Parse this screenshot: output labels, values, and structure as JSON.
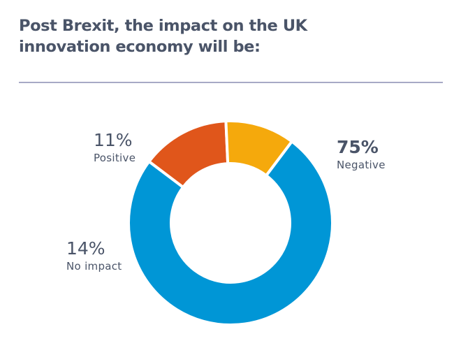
{
  "chart_data": {
    "type": "pie",
    "style": "donut",
    "title": "Post Brexit, the impact on the UK innovation economy will be:",
    "slices": [
      {
        "label": "Negative",
        "value": 75,
        "value_label": "75%",
        "color": "#0096d6"
      },
      {
        "label": "No impact",
        "value": 14,
        "value_label": "14%",
        "color": "#e0561b"
      },
      {
        "label": "Positive",
        "value": 11,
        "value_label": "11%",
        "color": "#f5a90c"
      }
    ]
  }
}
